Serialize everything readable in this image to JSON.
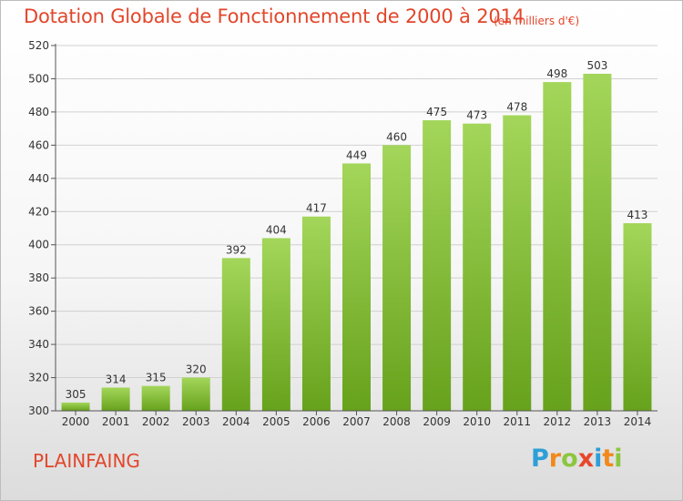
{
  "title": "Dotation Globale de Fonctionnement de 2000 à 2014",
  "subtitle": "(en milliers d'€)",
  "commune": "PLAINFAING",
  "brand": {
    "letters": [
      "P",
      "r",
      "o",
      "x",
      "i",
      "t",
      "i"
    ],
    "colors": [
      "#2e9fd8",
      "#f08a1c",
      "#8cc63f",
      "#e8462b",
      "#2e9fd8",
      "#f08a1c",
      "#8cc63f"
    ]
  },
  "colors": {
    "accent": "#e2462b",
    "bar_light": "#a3d65a",
    "bar_dark": "#67a21c",
    "grid": "#d0d0d0"
  },
  "chart_data": {
    "type": "bar",
    "categories": [
      "2000",
      "2001",
      "2002",
      "2003",
      "2004",
      "2005",
      "2006",
      "2007",
      "2008",
      "2009",
      "2010",
      "2011",
      "2012",
      "2013",
      "2014"
    ],
    "values": [
      305,
      314,
      315,
      320,
      392,
      404,
      417,
      449,
      460,
      475,
      473,
      478,
      498,
      503,
      413
    ],
    "yticks": [
      300,
      320,
      340,
      360,
      380,
      400,
      420,
      440,
      460,
      480,
      500,
      520
    ],
    "ylim": [
      300,
      520
    ],
    "title": "Dotation Globale de Fonctionnement de 2000 à 2014",
    "xlabel": "",
    "ylabel": "",
    "grid": true,
    "data_labels": true
  }
}
